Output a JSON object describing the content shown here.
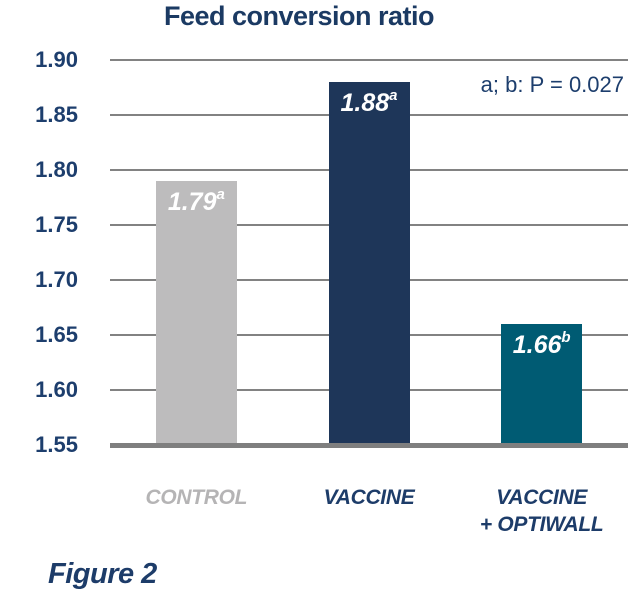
{
  "caption": "Figure 2",
  "chart_data": {
    "type": "bar",
    "title": "Feed conversion ratio",
    "annotation": "a; b: P = 0.027",
    "categories": [
      "CONTROL",
      "VACCINE",
      "VACCINE + OPTIWALL"
    ],
    "category_lines": [
      [
        "CONTROL"
      ],
      [
        "VACCINE"
      ],
      [
        "VACCINE",
        "+ OPTIWALL"
      ]
    ],
    "values": [
      1.79,
      1.88,
      1.66
    ],
    "bar_labels": [
      {
        "text": "1.79",
        "sup": "a"
      },
      {
        "text": "1.88",
        "sup": "a"
      },
      {
        "text": "1.66",
        "sup": "b"
      }
    ],
    "bar_colors": [
      "#bdbcbd",
      "#1e3659",
      "#005b73"
    ],
    "category_label_colors": [
      "#b5b4b5",
      "#1d3c69",
      "#1d3c69"
    ],
    "ylim": [
      1.55,
      1.9
    ],
    "ytick_step": 0.05,
    "yticks": [
      "1.90",
      "1.85",
      "1.80",
      "1.75",
      "1.70",
      "1.65",
      "1.60",
      "1.55"
    ],
    "grid": true,
    "legend": "none",
    "colors": {
      "text_navy": "#1d3e6d",
      "gridline": "#828282",
      "baseline": "#7f7f7f",
      "bar_label_text": "#ffffff"
    }
  }
}
